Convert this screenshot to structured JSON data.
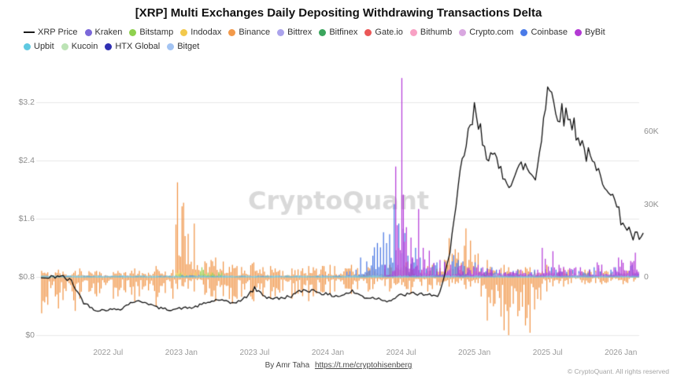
{
  "page": {
    "title": "[XRP] Multi Exchanges Daily Depositing Withdrawing Transactions Delta",
    "watermark": "CryptoQuant",
    "footer_author": "By Amr Taha",
    "footer_link": "https://t.me/cryptohisenberg",
    "footer_copyright": "© CryptoQuant. All rights reserved"
  },
  "legend_rows": [
    [
      {
        "label": "XRP Price",
        "color": "#1a1a1a",
        "marker": "line"
      },
      {
        "label": "Kraken",
        "color": "#7B68D9",
        "marker": "dot"
      },
      {
        "label": "Bitstamp",
        "color": "#8FD14F",
        "marker": "dot"
      },
      {
        "label": "Indodax",
        "color": "#F2C94C",
        "marker": "dot"
      },
      {
        "label": "Binance",
        "color": "#F2994A",
        "marker": "dot"
      },
      {
        "label": "Bittrex",
        "color": "#ABA3EC",
        "marker": "dot"
      },
      {
        "label": "Bitfinex",
        "color": "#3BA55D",
        "marker": "dot"
      },
      {
        "label": "Gate.io",
        "color": "#EB5757",
        "marker": "dot"
      },
      {
        "label": "Bithumb",
        "color": "#F8A1C4",
        "marker": "dot"
      },
      {
        "label": "Crypto.com",
        "color": "#D9A7E0",
        "marker": "dot"
      },
      {
        "label": "Coinbase",
        "color": "#4A7BE8",
        "marker": "dot"
      },
      {
        "label": "ByBit",
        "color": "#B33AD4",
        "marker": "dot"
      }
    ],
    [
      {
        "label": "Upbit",
        "color": "#5FC9E1",
        "marker": "dot"
      },
      {
        "label": "Kucoin",
        "color": "#BCE3B5",
        "marker": "dot"
      },
      {
        "label": "HTX Global",
        "color": "#2F2FB2",
        "marker": "dot"
      },
      {
        "label": "Bitget",
        "color": "#A3C4F3",
        "marker": "dot"
      }
    ]
  ],
  "axes": {
    "left_ticks": [
      "$0",
      "$0.8",
      "$1.6",
      "$2.4",
      "$3.2"
    ],
    "right_ticks": [
      "0",
      "30K",
      "60K"
    ],
    "x_ticks": [
      "2022 Jul",
      "2023 Jan",
      "2023 Jul",
      "2024 Jan",
      "2024 Jul",
      "2025 Jan",
      "2025 Jul",
      "2026 Jan"
    ]
  },
  "chart_data": {
    "type": "bar",
    "title": "[XRP] Multi Exchanges Daily Depositing Withdrawing Transactions Delta",
    "x": [
      "2022-02",
      "2022-03",
      "2022-04",
      "2022-05",
      "2022-06",
      "2022-07",
      "2022-08",
      "2022-09",
      "2022-10",
      "2022-11",
      "2022-12",
      "2023-01",
      "2023-02",
      "2023-03",
      "2023-04",
      "2023-05",
      "2023-06",
      "2023-07",
      "2023-08",
      "2023-09",
      "2023-10",
      "2023-11",
      "2023-12",
      "2024-01",
      "2024-02",
      "2024-03",
      "2024-04",
      "2024-05",
      "2024-06",
      "2024-07",
      "2024-08",
      "2024-09",
      "2024-10",
      "2024-11",
      "2024-12",
      "2025-01",
      "2025-02",
      "2025-03",
      "2025-04",
      "2025-05",
      "2025-06",
      "2025-07",
      "2025-08",
      "2025-09",
      "2025-10",
      "2025-11",
      "2025-12",
      "2026-01",
      "2026-02"
    ],
    "x_tick_month_indices": [
      5,
      11,
      17,
      23,
      29,
      35,
      41,
      47
    ],
    "left_axis": {
      "ticks": [
        0,
        0.8,
        1.6,
        2.4,
        3.2
      ],
      "range": [
        0,
        3.58
      ],
      "units": "USD"
    },
    "right_axis": {
      "ticks": [
        0,
        30000,
        60000
      ],
      "range": [
        -27000,
        83000
      ],
      "units": "transactions delta per day"
    },
    "grid": "horizontal",
    "legend_position": "top",
    "series": [
      {
        "name": "Binance",
        "type": "bar",
        "axis": "right",
        "color": "#EF8E3C",
        "values_pos": [
          2500,
          3000,
          2500,
          3500,
          2500,
          2000,
          2500,
          3500,
          2500,
          4500,
          3000,
          39000,
          22000,
          7000,
          8000,
          5000,
          4500,
          6000,
          4500,
          3500,
          3500,
          4500,
          4000,
          5000,
          4500,
          5000,
          4000,
          4000,
          5000,
          6000,
          5000,
          4500,
          5000,
          16000,
          20000,
          15000,
          7000,
          5000,
          4000,
          4000,
          4000,
          5000,
          3500,
          3000,
          3000,
          3000,
          2500,
          3000,
          2500
        ],
        "values_neg": [
          -15000,
          -13000,
          -14000,
          -9000,
          -8000,
          -9000,
          -8000,
          -10000,
          -8000,
          -12000,
          -9000,
          -5000,
          -6000,
          -8000,
          -10000,
          -11000,
          -9000,
          -10000,
          -9000,
          -8000,
          -9000,
          -10000,
          -8000,
          -7000,
          -6000,
          -7000,
          -6000,
          -5000,
          -6000,
          -5000,
          -7000,
          -6000,
          -5000,
          -4000,
          -5000,
          -4000,
          -18000,
          -22000,
          -24000,
          -20000,
          -23000,
          -6000,
          -4000,
          -3000,
          -3000,
          -3000,
          -2500,
          -3000,
          -2500
        ]
      },
      {
        "name": "Indodax",
        "type": "bar",
        "axis": "right",
        "color": "#F2C94C",
        "values_pos": [
          0,
          0,
          0,
          0,
          0,
          0,
          0,
          0,
          0,
          0,
          0,
          3000,
          2000,
          2500,
          0,
          0,
          0,
          0,
          0,
          0,
          0,
          0,
          0,
          0,
          0,
          0,
          0,
          0,
          0,
          0,
          0,
          0,
          0,
          0,
          0,
          0,
          0,
          0,
          0,
          0,
          0,
          0,
          0,
          0,
          0,
          0,
          0,
          0,
          0
        ]
      },
      {
        "name": "Bitstamp",
        "type": "bar",
        "axis": "right",
        "color": "#8FD14F",
        "values_pos": [
          0,
          0,
          0,
          0,
          0,
          0,
          0,
          0,
          0,
          0,
          0,
          1500,
          0,
          4000,
          2000,
          0,
          0,
          0,
          0,
          0,
          0,
          0,
          0,
          0,
          0,
          0,
          0,
          0,
          0,
          0,
          0,
          0,
          0,
          0,
          0,
          0,
          0,
          0,
          0,
          0,
          0,
          0,
          0,
          0,
          0,
          0,
          0,
          0,
          0
        ]
      },
      {
        "name": "Coinbase",
        "type": "bar",
        "axis": "right",
        "color": "#3D6EE0",
        "values_pos": [
          500,
          500,
          500,
          500,
          500,
          500,
          500,
          500,
          500,
          500,
          500,
          800,
          800,
          500,
          500,
          500,
          500,
          500,
          500,
          500,
          500,
          500,
          500,
          800,
          800,
          3000,
          8000,
          14000,
          30000,
          22000,
          12000,
          8000,
          6000,
          9000,
          7000,
          6000,
          4000,
          3000,
          2500,
          3000,
          3000,
          4000,
          3000,
          3000,
          3000,
          4000,
          3000,
          4000,
          5000
        ]
      },
      {
        "name": "Crypto.com",
        "type": "bar",
        "axis": "right",
        "color": "#D092E6",
        "values_pos": [
          0,
          0,
          0,
          0,
          0,
          0,
          0,
          0,
          0,
          0,
          0,
          0,
          0,
          0,
          0,
          0,
          0,
          0,
          0,
          0,
          0,
          0,
          0,
          0,
          0,
          0,
          0,
          0,
          0,
          0,
          0,
          0,
          0,
          0,
          0,
          2000,
          1500,
          1200,
          1200,
          1500,
          1500,
          2500,
          2000,
          1500,
          1500,
          2000,
          1500,
          2500,
          3000
        ]
      },
      {
        "name": "ByBit",
        "type": "bar",
        "axis": "right",
        "color": "#B02FD6",
        "values_pos": [
          0,
          0,
          0,
          0,
          0,
          0,
          0,
          0,
          0,
          0,
          0,
          0,
          0,
          0,
          0,
          0,
          0,
          0,
          0,
          0,
          0,
          0,
          0,
          0,
          0,
          0,
          0,
          0,
          5000,
          82000,
          28000,
          12000,
          7000,
          6000,
          5000,
          5000,
          4000,
          3000,
          2500,
          3000,
          3000,
          12000,
          5000,
          4000,
          4000,
          6000,
          4000,
          8000,
          10000
        ]
      },
      {
        "name": "Upbit",
        "type": "bar",
        "axis": "right",
        "color": "#5FC9E1",
        "constant_pos": 700,
        "constant_neg": -400
      },
      {
        "name": "XRP Price",
        "type": "line",
        "axis": "left",
        "color": "#111111",
        "values": [
          0.78,
          0.82,
          0.74,
          0.45,
          0.34,
          0.35,
          0.36,
          0.46,
          0.46,
          0.38,
          0.35,
          0.37,
          0.38,
          0.44,
          0.49,
          0.44,
          0.48,
          0.64,
          0.52,
          0.5,
          0.54,
          0.62,
          0.61,
          0.55,
          0.54,
          0.6,
          0.52,
          0.51,
          0.47,
          0.55,
          0.57,
          0.56,
          0.52,
          1.1,
          2.4,
          3.05,
          2.55,
          2.3,
          2.1,
          2.35,
          2.15,
          3.4,
          3.05,
          2.95,
          2.55,
          2.25,
          2.05,
          1.6,
          1.35
        ]
      }
    ]
  }
}
